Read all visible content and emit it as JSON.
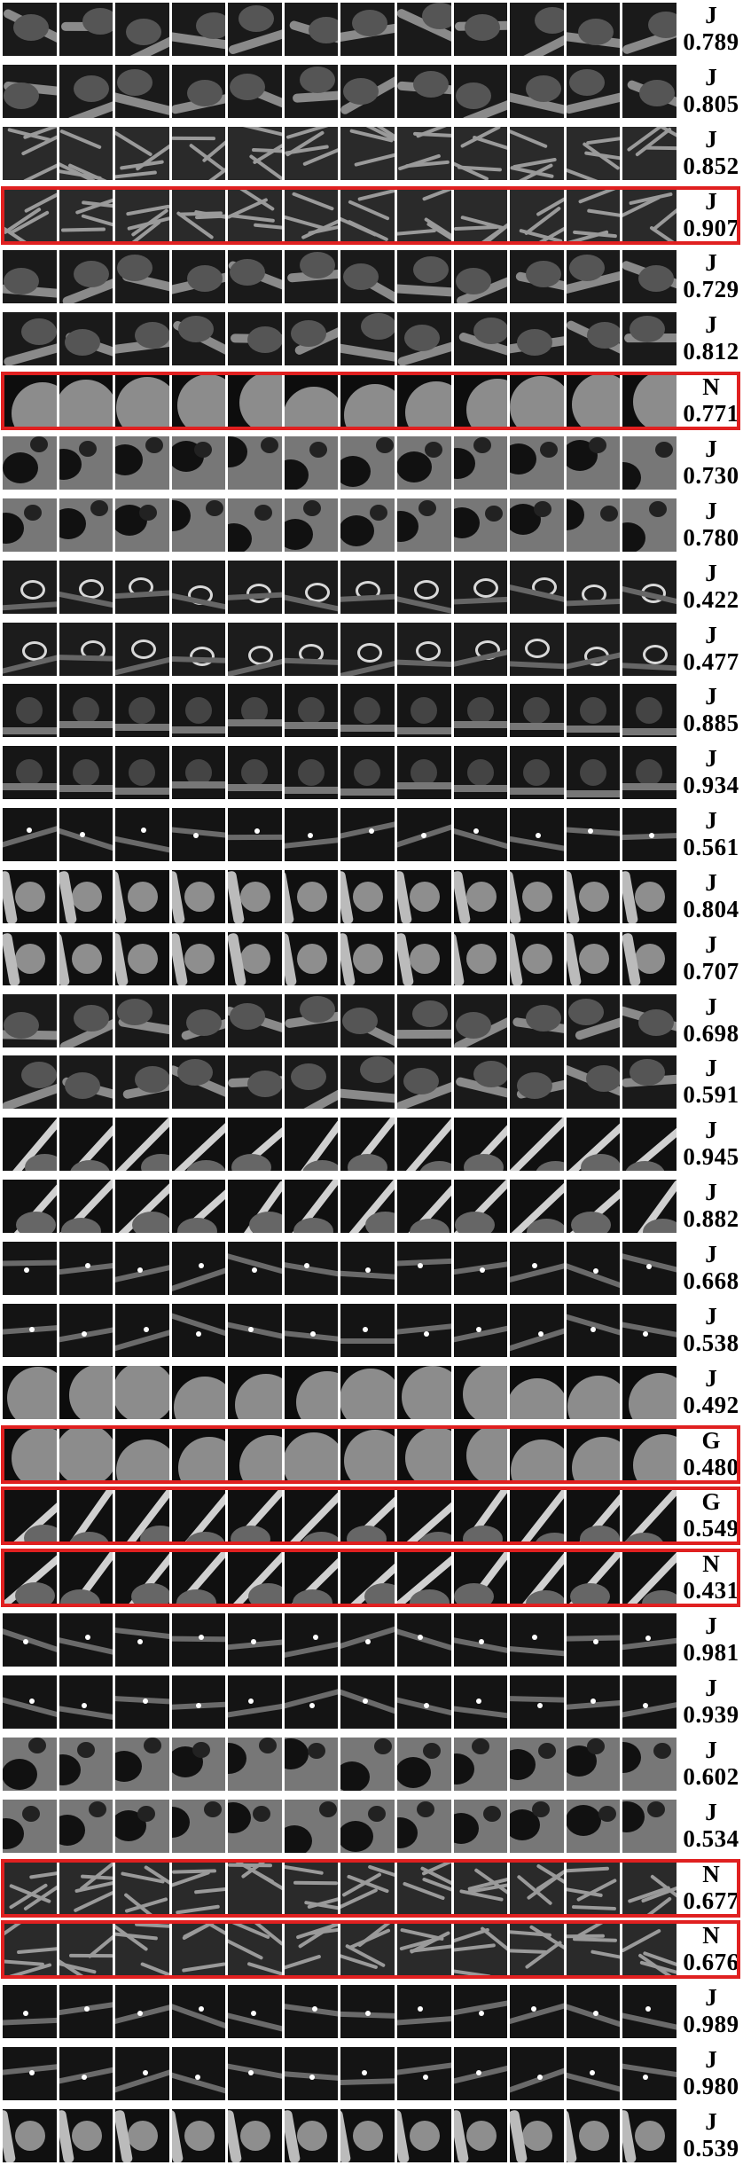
{
  "rows": [
    {
      "cls": "J",
      "score": "0.789",
      "highlighted": false,
      "style": "vessel"
    },
    {
      "cls": "J",
      "score": "0.805",
      "highlighted": false,
      "style": "vessel"
    },
    {
      "cls": "J",
      "score": "0.852",
      "highlighted": false,
      "style": "texture"
    },
    {
      "cls": "J",
      "score": "0.907",
      "highlighted": true,
      "style": "texture"
    },
    {
      "cls": "J",
      "score": "0.729",
      "highlighted": false,
      "style": "vessel"
    },
    {
      "cls": "J",
      "score": "0.812",
      "highlighted": false,
      "style": "vessel"
    },
    {
      "cls": "N",
      "score": "0.771",
      "highlighted": true,
      "style": "large"
    },
    {
      "cls": "J",
      "score": "0.730",
      "highlighted": false,
      "style": "dark"
    },
    {
      "cls": "J",
      "score": "0.780",
      "highlighted": false,
      "style": "dark"
    },
    {
      "cls": "J",
      "score": "0.422",
      "highlighted": false,
      "style": "ring"
    },
    {
      "cls": "J",
      "score": "0.477",
      "highlighted": false,
      "style": "ring"
    },
    {
      "cls": "J",
      "score": "0.885",
      "highlighted": false,
      "style": "soft"
    },
    {
      "cls": "J",
      "score": "0.934",
      "highlighted": false,
      "style": "soft"
    },
    {
      "cls": "J",
      "score": "0.561",
      "highlighted": false,
      "style": "dot"
    },
    {
      "cls": "J",
      "score": "0.804",
      "highlighted": false,
      "style": "nodule"
    },
    {
      "cls": "J",
      "score": "0.707",
      "highlighted": false,
      "style": "nodule"
    },
    {
      "cls": "J",
      "score": "0.698",
      "highlighted": false,
      "style": "vessel"
    },
    {
      "cls": "J",
      "score": "0.591",
      "highlighted": false,
      "style": "vessel"
    },
    {
      "cls": "J",
      "score": "0.945",
      "highlighted": false,
      "style": "streak"
    },
    {
      "cls": "J",
      "score": "0.882",
      "highlighted": false,
      "style": "streak"
    },
    {
      "cls": "J",
      "score": "0.668",
      "highlighted": false,
      "style": "dot"
    },
    {
      "cls": "J",
      "score": "0.538",
      "highlighted": false,
      "style": "dot"
    },
    {
      "cls": "J",
      "score": "0.492",
      "highlighted": false,
      "style": "large"
    },
    {
      "cls": "G",
      "score": "0.480",
      "highlighted": true,
      "style": "large"
    },
    {
      "cls": "G",
      "score": "0.549",
      "highlighted": true,
      "style": "streak"
    },
    {
      "cls": "N",
      "score": "0.431",
      "highlighted": true,
      "style": "streak"
    },
    {
      "cls": "J",
      "score": "0.981",
      "highlighted": false,
      "style": "dot"
    },
    {
      "cls": "J",
      "score": "0.939",
      "highlighted": false,
      "style": "dot"
    },
    {
      "cls": "J",
      "score": "0.602",
      "highlighted": false,
      "style": "dark"
    },
    {
      "cls": "J",
      "score": "0.534",
      "highlighted": false,
      "style": "dark"
    },
    {
      "cls": "N",
      "score": "0.677",
      "highlighted": true,
      "style": "texture"
    },
    {
      "cls": "N",
      "score": "0.676",
      "highlighted": true,
      "style": "texture"
    },
    {
      "cls": "J",
      "score": "0.989",
      "highlighted": false,
      "style": "dot"
    },
    {
      "cls": "J",
      "score": "0.980",
      "highlighted": false,
      "style": "dot"
    },
    {
      "cls": "J",
      "score": "0.539",
      "highlighted": false,
      "style": "nodule"
    }
  ],
  "tiles_per_row": 12
}
